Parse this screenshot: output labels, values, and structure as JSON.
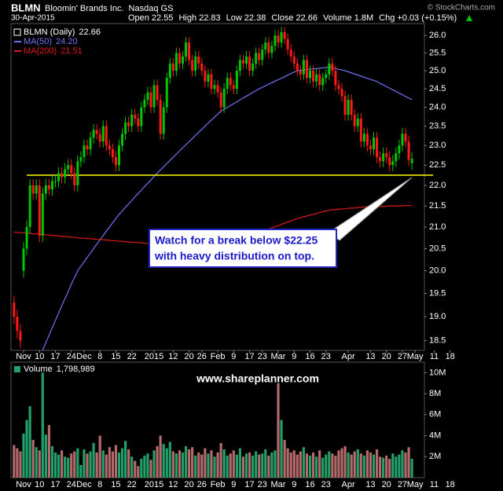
{
  "chart_data": {
    "type": "candlestick",
    "header": {
      "symbol": "BLMN",
      "company": "Bloomin' Brands Inc.",
      "exchange": "Nasdaq GS",
      "date": "30-Apr-2015",
      "open": {
        "label": "Open",
        "value": 22.55
      },
      "high": {
        "label": "High",
        "value": 22.83
      },
      "low": {
        "label": "Low",
        "value": 22.38
      },
      "close": {
        "label": "Close",
        "value": 22.66
      },
      "volume": {
        "label": "Volume",
        "value": "1.8M"
      },
      "change": {
        "label": "Chg",
        "value": "+0.03 (+0.15%)"
      }
    },
    "copyright": "© StockCharts.com",
    "watermark": "www.shareplanner.com",
    "log_scale": true,
    "ylim": [
      18.3,
      26.35
    ],
    "yticks": [
      18.5,
      {
        "value": 19,
        "label": "19.0"
      },
      19.5,
      {
        "value": 20,
        "label": "20.0"
      },
      20.5,
      {
        "value": 21,
        "label": "21.0"
      },
      21.5,
      {
        "value": 22,
        "label": "22.0"
      },
      22.5,
      {
        "value": 23,
        "label": "23.0"
      },
      23.5,
      {
        "value": 24,
        "label": "24.0"
      },
      24.5,
      {
        "value": 25,
        "label": "25.0"
      },
      25.5,
      {
        "value": 26,
        "label": "26.0"
      }
    ],
    "categories": [
      null,
      null,
      null,
      "Nov",
      null,
      null,
      null,
      null,
      "10",
      null,
      null,
      null,
      null,
      "17",
      null,
      null,
      null,
      null,
      "24",
      null,
      null,
      null,
      "Dec",
      null,
      null,
      null,
      null,
      "8",
      null,
      null,
      null,
      null,
      "15",
      null,
      null,
      null,
      null,
      "22",
      null,
      null,
      null,
      null,
      null,
      null,
      "2015",
      null,
      null,
      null,
      null,
      null,
      "12",
      null,
      null,
      null,
      null,
      "20",
      null,
      null,
      null,
      "26",
      null,
      null,
      null,
      null,
      "Feb",
      null,
      null,
      null,
      null,
      "9",
      null,
      null,
      null,
      null,
      "17",
      null,
      null,
      null,
      "23",
      null,
      null,
      null,
      null,
      "Mar",
      null,
      null,
      null,
      null,
      "9",
      null,
      null,
      null,
      null,
      "16",
      null,
      null,
      null,
      null,
      "23",
      null,
      null,
      null,
      null,
      null,
      null,
      "Apr",
      null,
      null,
      null,
      null,
      null,
      null,
      "13",
      null,
      null,
      null,
      null,
      "20",
      null,
      null,
      null,
      null,
      "27",
      null,
      null,
      null,
      "May",
      null,
      null,
      null,
      null,
      null,
      "11",
      null,
      null,
      null,
      null,
      "18"
    ],
    "price_name": "BLMN (Daily)",
    "price_last_label": "22.66",
    "up_color": "#00c800",
    "down_color": "#ff1a1a",
    "open": [
      19.3,
      19.0,
      18.7,
      20.0,
      20.5,
      21.0,
      22.0,
      21.8,
      22.0,
      20.8,
      21.8,
      22.0,
      21.9,
      22.1,
      22.1,
      22.3,
      22.2,
      22.4,
      22.5,
      22.3,
      22.0,
      22.6,
      22.7,
      23.0,
      22.9,
      23.2,
      23.4,
      23.3,
      23.1,
      23.5,
      23.0,
      22.9,
      22.7,
      22.5,
      23.0,
      23.3,
      23.6,
      23.5,
      23.8,
      23.7,
      23.5,
      24.0,
      24.2,
      24.4,
      24.0,
      24.6,
      24.2,
      23.3,
      24.0,
      24.8,
      25.2,
      25.0,
      25.5,
      25.2,
      25.4,
      25.8,
      25.3,
      25.0,
      25.4,
      25.2,
      25.0,
      24.7,
      24.9,
      24.5,
      24.6,
      24.4,
      24.0,
      24.5,
      24.8,
      24.6,
      24.5,
      25.0,
      25.3,
      25.2,
      25.4,
      25.0,
      25.2,
      25.5,
      25.3,
      25.6,
      25.8,
      25.5,
      25.7,
      26.0,
      25.8,
      26.1,
      25.9,
      25.6,
      25.4,
      25.2,
      25.0,
      24.9,
      25.3,
      24.8,
      25.0,
      24.7,
      24.9,
      24.6,
      24.8,
      24.9,
      25.2,
      25.0,
      24.6,
      24.5,
      24.3,
      23.8,
      24.2,
      23.8,
      23.5,
      23.7,
      23.1,
      23.3,
      23.0,
      22.9,
      23.2,
      22.7,
      22.6,
      22.8,
      22.7,
      22.5,
      22.6,
      22.8,
      23.0,
      23.3,
      23.1,
      22.55,
      null,
      null,
      null,
      null,
      null,
      null,
      null,
      null,
      null,
      null,
      null,
      null
    ],
    "high": [
      19.45,
      19.15,
      18.85,
      20.65,
      21.15,
      22.15,
      22.15,
      22.15,
      22.15,
      21.95,
      22.15,
      22.15,
      22.25,
      22.25,
      22.45,
      22.45,
      22.55,
      22.65,
      22.65,
      22.45,
      22.75,
      22.85,
      23.15,
      23.15,
      23.35,
      23.55,
      23.55,
      23.45,
      23.65,
      23.65,
      23.15,
      23.05,
      22.85,
      23.15,
      23.45,
      23.75,
      23.75,
      23.95,
      23.95,
      23.85,
      24.15,
      24.35,
      24.55,
      24.55,
      24.75,
      24.75,
      24.35,
      24.15,
      24.95,
      25.35,
      25.35,
      25.65,
      25.65,
      25.55,
      25.95,
      25.95,
      25.45,
      25.55,
      25.55,
      25.35,
      25.15,
      25.05,
      25.05,
      24.75,
      24.75,
      24.55,
      24.65,
      24.95,
      24.95,
      24.75,
      25.15,
      25.45,
      25.45,
      25.55,
      25.55,
      25.35,
      25.65,
      25.65,
      25.75,
      25.95,
      25.95,
      25.85,
      26.15,
      26.15,
      26.25,
      26.25,
      26.05,
      25.75,
      25.55,
      25.35,
      25.15,
      25.45,
      25.45,
      25.15,
      25.15,
      25.05,
      25.05,
      24.95,
      25.05,
      25.35,
      25.35,
      25.15,
      24.75,
      24.65,
      24.45,
      24.35,
      24.35,
      23.95,
      23.85,
      23.85,
      23.45,
      23.45,
      23.15,
      23.35,
      23.35,
      22.85,
      22.95,
      22.95,
      22.85,
      22.75,
      22.95,
      23.15,
      23.45,
      23.45,
      23.25,
      22.83,
      null,
      null,
      null,
      null,
      null,
      null,
      null,
      null,
      null,
      null,
      null,
      null
    ],
    "low": [
      18.85,
      18.55,
      18.35,
      19.85,
      20.35,
      20.85,
      21.65,
      21.65,
      20.65,
      20.65,
      21.65,
      21.75,
      21.75,
      21.95,
      21.95,
      22.05,
      22.05,
      22.25,
      22.15,
      21.85,
      21.85,
      22.45,
      22.55,
      22.75,
      22.75,
      23.05,
      23.15,
      22.95,
      22.95,
      22.85,
      22.75,
      22.55,
      22.35,
      22.35,
      22.85,
      23.15,
      23.35,
      23.35,
      23.55,
      23.35,
      23.35,
      23.85,
      24.05,
      23.85,
      23.85,
      24.05,
      23.15,
      23.15,
      23.85,
      24.65,
      24.85,
      24.85,
      25.05,
      25.05,
      25.25,
      25.15,
      24.85,
      24.85,
      25.05,
      24.85,
      24.55,
      24.55,
      24.35,
      24.35,
      24.25,
      23.85,
      23.85,
      24.35,
      24.45,
      24.35,
      24.35,
      24.85,
      25.05,
      25.05,
      24.85,
      24.85,
      25.05,
      25.15,
      25.15,
      25.45,
      25.35,
      25.35,
      25.55,
      25.65,
      25.65,
      25.75,
      25.45,
      25.25,
      25.05,
      24.85,
      24.75,
      24.75,
      24.65,
      24.65,
      24.55,
      24.55,
      24.45,
      24.45,
      24.65,
      24.75,
      24.85,
      24.45,
      24.35,
      24.15,
      23.65,
      23.65,
      23.65,
      23.35,
      23.35,
      22.95,
      22.95,
      22.85,
      22.75,
      22.75,
      22.55,
      22.45,
      22.45,
      22.55,
      22.35,
      22.35,
      22.45,
      22.65,
      22.85,
      22.95,
      22.48,
      22.38,
      null,
      null,
      null,
      null,
      null,
      null,
      null,
      null,
      null,
      null,
      null,
      null
    ],
    "close": [
      19.0,
      18.7,
      18.5,
      20.5,
      21.0,
      22.0,
      21.8,
      22.0,
      20.8,
      21.8,
      22.0,
      21.9,
      22.1,
      22.1,
      22.3,
      22.2,
      22.4,
      22.5,
      22.3,
      22.0,
      22.6,
      22.7,
      23.0,
      22.9,
      23.2,
      23.4,
      23.3,
      23.1,
      23.5,
      23.0,
      22.9,
      22.7,
      22.5,
      23.0,
      23.3,
      23.6,
      23.5,
      23.8,
      23.7,
      23.5,
      24.0,
      24.2,
      24.4,
      24.0,
      24.6,
      24.2,
      23.3,
      24.0,
      24.8,
      25.2,
      25.0,
      25.5,
      25.2,
      25.4,
      25.8,
      25.3,
      25.0,
      25.4,
      25.2,
      25.0,
      24.7,
      24.9,
      24.5,
      24.6,
      24.4,
      24.0,
      24.5,
      24.8,
      24.6,
      24.5,
      25.0,
      25.3,
      25.2,
      25.4,
      25.0,
      25.2,
      25.5,
      25.3,
      25.6,
      25.8,
      25.5,
      25.7,
      26.0,
      25.8,
      26.1,
      25.9,
      25.6,
      25.4,
      25.2,
      25.0,
      24.9,
      25.3,
      24.8,
      25.0,
      24.7,
      24.9,
      24.6,
      24.8,
      24.9,
      25.2,
      25.0,
      24.6,
      24.5,
      24.3,
      23.8,
      24.2,
      23.8,
      23.5,
      23.7,
      23.1,
      23.3,
      23.0,
      22.9,
      23.2,
      22.7,
      22.6,
      22.8,
      22.7,
      22.5,
      22.6,
      22.8,
      23.0,
      23.3,
      23.1,
      22.63,
      22.66,
      null,
      null,
      null,
      null,
      null,
      null,
      null,
      null,
      null,
      null,
      null,
      null
    ],
    "moving_averages": [
      {
        "name": "MA(50)",
        "last_label": "24.20",
        "color": "#7272f0",
        "values": [
          null,
          null,
          null,
          null,
          null,
          null,
          null,
          null,
          null,
          18.3,
          18.46,
          18.61,
          18.77,
          18.92,
          19.08,
          19.23,
          19.39,
          19.54,
          19.7,
          19.85,
          20.0,
          20.1,
          20.2,
          20.3,
          20.4,
          20.5,
          20.6,
          20.7,
          20.8,
          20.9,
          21.0,
          21.1,
          21.2,
          21.3,
          21.38,
          21.47,
          21.55,
          21.63,
          21.72,
          21.8,
          21.88,
          21.97,
          22.05,
          22.13,
          22.22,
          22.3,
          22.38,
          22.46,
          22.54,
          22.62,
          22.7,
          22.78,
          22.86,
          22.94,
          23.02,
          23.1,
          23.18,
          23.26,
          23.34,
          23.42,
          23.5,
          23.58,
          23.66,
          23.74,
          23.82,
          23.9,
          23.95,
          24.0,
          24.05,
          24.1,
          24.15,
          24.2,
          24.25,
          24.3,
          24.35,
          24.4,
          24.45,
          24.5,
          24.54,
          24.58,
          24.63,
          24.67,
          24.71,
          24.75,
          24.79,
          24.83,
          24.88,
          24.92,
          24.96,
          25.0,
          25.01,
          25.02,
          25.03,
          25.04,
          25.05,
          25.06,
          25.07,
          25.08,
          25.09,
          25.1,
          25.08,
          25.06,
          25.04,
          25.02,
          25.0,
          24.97,
          24.94,
          24.91,
          24.88,
          24.85,
          24.82,
          24.79,
          24.76,
          24.73,
          24.7,
          24.65,
          24.61,
          24.56,
          24.52,
          24.47,
          24.43,
          24.38,
          24.34,
          24.29,
          24.25,
          24.2,
          null,
          null,
          null,
          null,
          null,
          null,
          null,
          null,
          null,
          null,
          null,
          null
        ]
      },
      {
        "name": "MA(200)",
        "last_label": "21.51",
        "color": "#e01818",
        "values": [
          20.88,
          20.87,
          20.87,
          20.86,
          20.86,
          20.85,
          20.84,
          20.84,
          20.83,
          20.82,
          20.82,
          20.81,
          20.8,
          20.8,
          20.79,
          20.78,
          20.78,
          20.77,
          20.76,
          20.76,
          20.75,
          20.74,
          20.74,
          20.73,
          20.73,
          20.72,
          20.71,
          20.71,
          20.7,
          20.7,
          20.69,
          20.68,
          20.68,
          20.67,
          20.67,
          20.66,
          20.65,
          20.65,
          20.64,
          20.64,
          20.63,
          20.62,
          20.62,
          20.61,
          20.61,
          20.6,
          20.6,
          20.6,
          20.6,
          20.6,
          20.6,
          20.6,
          20.59,
          20.59,
          20.59,
          20.59,
          20.59,
          20.59,
          20.59,
          20.59,
          20.59,
          20.58,
          20.58,
          20.58,
          20.58,
          20.58,
          20.58,
          20.58,
          20.61,
          20.64,
          20.67,
          20.7,
          20.73,
          20.76,
          20.78,
          20.81,
          20.84,
          20.87,
          20.9,
          20.92,
          20.95,
          20.98,
          21.01,
          21.03,
          21.06,
          21.09,
          21.12,
          21.14,
          21.17,
          21.2,
          21.22,
          21.24,
          21.26,
          21.28,
          21.3,
          21.32,
          21.34,
          21.36,
          21.38,
          21.4,
          21.41,
          21.41,
          21.42,
          21.43,
          21.43,
          21.44,
          21.45,
          21.45,
          21.46,
          21.47,
          21.47,
          21.48,
          21.48,
          21.48,
          21.49,
          21.49,
          21.49,
          21.49,
          21.5,
          21.5,
          21.5,
          21.5,
          21.5,
          21.51,
          21.51,
          21.51,
          null,
          null,
          null,
          null,
          null,
          null,
          null,
          null,
          null,
          null,
          null,
          null
        ]
      }
    ],
    "support": {
      "value": 22.25,
      "color": "#ffff00"
    },
    "annotation": [
      "Watch for a break below $22.25",
      "with heavy distribution on top."
    ],
    "volume": {
      "name": "Volume",
      "last_label": "1,798,989",
      "up_color": "#22a06a",
      "down_color": "#b46a6a",
      "ylim": [
        0,
        11000000
      ],
      "yticks": [
        {
          "value": 2000000,
          "label": "2M"
        },
        {
          "value": 4000000,
          "label": "4M"
        },
        {
          "value": 6000000,
          "label": "6M"
        },
        {
          "value": 8000000,
          "label": "8M"
        },
        {
          "value": 10000000,
          "label": "10M"
        }
      ],
      "values": [
        3100000,
        2800000,
        2500000,
        4200000,
        5500000,
        6800000,
        3600000,
        2900000,
        2600000,
        10000000,
        4100000,
        5000000,
        3000000,
        2400000,
        2200000,
        2600000,
        2000000,
        1900000,
        2300000,
        2500000,
        2800000,
        1200000,
        2700000,
        2300000,
        2500000,
        3300000,
        2400000,
        4000000,
        2600000,
        2200000,
        2900000,
        2500000,
        3100000,
        2400000,
        2800000,
        3500000,
        2700000,
        2000000,
        1600000,
        1100000,
        1800000,
        2100000,
        2300000,
        1700000,
        2600000,
        3000000,
        4000000,
        3200000,
        2800000,
        3400000,
        2500000,
        2300000,
        2600000,
        2400000,
        3000000,
        2700000,
        2900000,
        2100000,
        2400000,
        2200000,
        2800000,
        2300000,
        2600000,
        2000000,
        2400000,
        3300000,
        2700000,
        2100000,
        2300000,
        2600000,
        2200000,
        2800000,
        2000000,
        2300000,
        2400000,
        2100000,
        2500000,
        2200000,
        2300000,
        2700000,
        2100000,
        2400000,
        2600000,
        9000000,
        5500000,
        3600000,
        2800000,
        2400000,
        2600000,
        2200000,
        2500000,
        2900000,
        2300000,
        2100000,
        2400000,
        2000000,
        2600000,
        1900000,
        2200000,
        2500000,
        2300000,
        2100000,
        2600000,
        2800000,
        3000000,
        2400000,
        2200000,
        2500000,
        2700000,
        2300000,
        2100000,
        2600000,
        2400000,
        2200000,
        2700000,
        2000000,
        1900000,
        2100000,
        1800000,
        2300000,
        2000000,
        2200000,
        2600000,
        2400000,
        2900000,
        1798989,
        null,
        null,
        null,
        null,
        null,
        null,
        null,
        null,
        null,
        null,
        null,
        null
      ]
    }
  }
}
